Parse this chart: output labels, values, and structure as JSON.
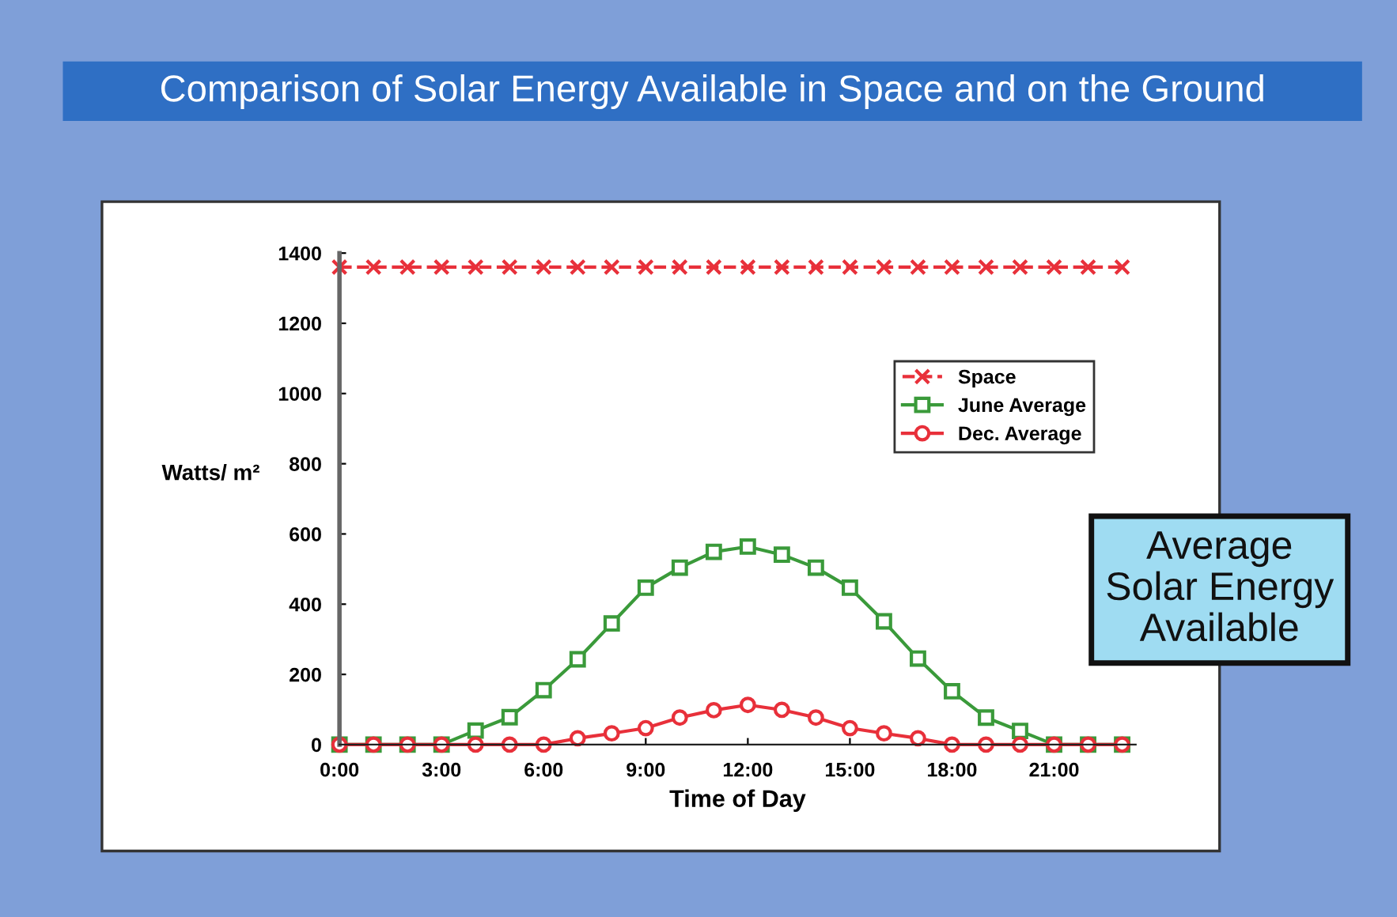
{
  "chart_data": {
    "type": "line",
    "title": "Comparison of Solar Energy Available in Space and on the Ground",
    "xlabel": "Time of Day",
    "ylabel": "Watts/ m²",
    "annotations": [
      "Average\nSolar Energy\nAvailable"
    ],
    "x": [
      0,
      1,
      2,
      3,
      4,
      5,
      6,
      7,
      8,
      9,
      10,
      11,
      12,
      13,
      14,
      15,
      16,
      17,
      18,
      19,
      20,
      21,
      22,
      23
    ],
    "series": [
      {
        "name": "Space",
        "color": "#e8303a",
        "marker": "cross",
        "line_style": "dashed",
        "values": [
          1360,
          1360,
          1360,
          1360,
          1360,
          1360,
          1360,
          1360,
          1360,
          1360,
          1360,
          1360,
          1360,
          1360,
          1360,
          1360,
          1360,
          1360,
          1360,
          1360,
          1360,
          1360,
          1360,
          1360
        ]
      },
      {
        "name": "June Average",
        "color": "#3a9a3a",
        "marker": "square",
        "line_style": "solid",
        "values": [
          0,
          0,
          0,
          0,
          40,
          78,
          155,
          243,
          345,
          447,
          504,
          549,
          564,
          541,
          504,
          447,
          351,
          245,
          152,
          77,
          39,
          0,
          0,
          0
        ]
      },
      {
        "name": "Dec. Average",
        "color": "#e8303a",
        "marker": "circle",
        "line_style": "solid",
        "values": [
          0,
          0,
          0,
          0,
          0,
          0,
          0,
          18,
          32,
          47,
          77,
          98,
          113,
          99,
          77,
          47,
          32,
          18,
          0,
          0,
          0,
          0,
          0,
          0
        ]
      }
    ],
    "xlim": [
      0,
      23.4
    ],
    "ylim": [
      0,
      1400
    ],
    "xticks": [
      {
        "value": 0,
        "label": "0:00"
      },
      {
        "value": 3,
        "label": "3:00"
      },
      {
        "value": 6,
        "label": "6:00"
      },
      {
        "value": 9,
        "label": "9:00"
      },
      {
        "value": 12,
        "label": "12:00"
      },
      {
        "value": 15,
        "label": "15:00"
      },
      {
        "value": 18,
        "label": "18:00"
      },
      {
        "value": 21,
        "label": "21:00"
      }
    ],
    "yticks": [
      0,
      200,
      400,
      600,
      800,
      1000,
      1200,
      1400
    ],
    "grid": false,
    "legend": "top right"
  }
}
